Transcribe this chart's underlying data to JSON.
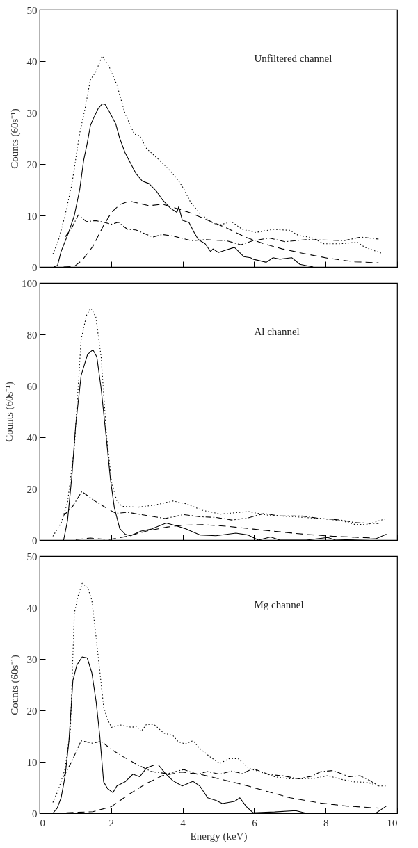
{
  "chart_data": [
    {
      "type": "line",
      "ylabel": "Counts (60s⁻¹)",
      "annotations": [
        "Unfiltered channel"
      ],
      "xlim": [
        0,
        10
      ],
      "xticks": [
        0,
        2,
        4,
        6,
        8,
        10
      ],
      "ylim": [
        0,
        50
      ],
      "yticks": [
        0,
        10,
        20,
        30,
        40,
        50
      ],
      "tick_labels": "y",
      "series": [
        {
          "color": "#000000",
          "line_style": "solid",
          "x": [
            0.4,
            0.5,
            0.6,
            0.8,
            0.97,
            1.12,
            1.23,
            1.33,
            1.42,
            1.5,
            1.64,
            1.75,
            1.83,
            1.94,
            2.13,
            2.24,
            2.39,
            2.54,
            2.69,
            2.87,
            3.06,
            3.28,
            3.43,
            3.66,
            3.84,
            3.89,
            3.99,
            4.18,
            4.33,
            4.44,
            4.63,
            4.78,
            4.85,
            5.0,
            5.22,
            5.45,
            5.71,
            5.9,
            5.97,
            6.34,
            6.53,
            6.72,
            7.05,
            7.28,
            7.65
          ],
          "values": [
            0,
            0.3,
            3,
            6.5,
            10,
            15,
            20.7,
            24,
            27.5,
            28.8,
            30.8,
            31.7,
            31.6,
            30.3,
            27.8,
            25,
            22.2,
            20.2,
            18.2,
            16.7,
            16.2,
            14.6,
            13.1,
            11.4,
            10.6,
            11.7,
            9.1,
            8.6,
            6.6,
            5.3,
            4.5,
            3,
            3.5,
            2.8,
            3.3,
            3.8,
            2,
            1.8,
            1.5,
            0.9,
            1.8,
            1.5,
            1.8,
            0.5,
            0
          ]
        },
        {
          "color": "#000000",
          "line_style": "dotted",
          "x": [
            0.37,
            0.52,
            0.71,
            0.9,
            1.12,
            1.27,
            1.42,
            1.57,
            1.75,
            1.94,
            2.16,
            2.39,
            2.65,
            2.8,
            2.99,
            3.28,
            3.58,
            3.84,
            4.03,
            4.22,
            4.48,
            4.78,
            5.0,
            5.37,
            5.67,
            6.04,
            6.53,
            7.01,
            7.24,
            7.61,
            7.95,
            8.43,
            8.88,
            9.1,
            9.59
          ],
          "values": [
            2.5,
            5,
            10,
            16,
            26,
            30.8,
            36.4,
            37.9,
            41,
            39,
            35.4,
            29.8,
            25.8,
            25.5,
            23,
            21.2,
            19.2,
            17.2,
            15.2,
            12.6,
            10.4,
            8.8,
            8.1,
            8.8,
            7.3,
            6.7,
            7.3,
            7.1,
            6.1,
            5.7,
            4.5,
            4.5,
            4.8,
            3.8,
            2.6
          ]
        },
        {
          "color": "#000000",
          "line_style": "dashed",
          "x": [
            0.67,
            0.97,
            1.19,
            1.49,
            1.79,
            2.01,
            2.24,
            2.5,
            2.76,
            3.06,
            3.43,
            3.73,
            4.18,
            4.7,
            5.22,
            5.75,
            6.27,
            6.79,
            7.46,
            8.06,
            8.81,
            9.48
          ],
          "values": [
            0,
            0.1,
            1.3,
            4,
            8.1,
            10.6,
            12.1,
            12.8,
            12.4,
            11.9,
            12.2,
            11.6,
            10.6,
            9.1,
            7.6,
            5.8,
            4.5,
            3.5,
            2.5,
            1.7,
            1,
            0.8
          ]
        },
        {
          "color": "#000000",
          "line_style": "dashdot",
          "x": [
            0.71,
            0.9,
            1.08,
            1.31,
            1.57,
            1.79,
            2.01,
            2.2,
            2.46,
            2.69,
            3.17,
            3.43,
            3.73,
            4.25,
            4.63,
            5.22,
            5.63,
            5.97,
            6.42,
            6.87,
            7.46,
            8.13,
            8.51,
            8.99,
            9.48
          ],
          "values": [
            5.8,
            7.6,
            10.1,
            8.8,
            9,
            8.7,
            8.3,
            8.7,
            7.3,
            7.2,
            5.8,
            6.3,
            6,
            5.1,
            5.3,
            5.1,
            4.3,
            5.1,
            5.6,
            4.9,
            5.3,
            5.2,
            5.1,
            5.8,
            5.4
          ]
        }
      ]
    },
    {
      "type": "line",
      "ylabel": "Counts (60s⁻¹)",
      "annotations": [
        "Al channel"
      ],
      "xlim": [
        0,
        10
      ],
      "xticks": [
        0,
        2,
        4,
        6,
        8,
        10
      ],
      "ylim": [
        0,
        100
      ],
      "yticks": [
        0,
        20,
        40,
        60,
        80,
        100
      ],
      "tick_labels": "y",
      "series": [
        {
          "color": "#000000",
          "line_style": "solid",
          "x": [
            0.67,
            0.78,
            0.9,
            1.01,
            1.16,
            1.34,
            1.49,
            1.6,
            1.72,
            1.87,
            1.98,
            2.09,
            2.24,
            2.39,
            2.54,
            2.84,
            3.13,
            3.54,
            3.81,
            4.1,
            4.48,
            4.93,
            5.49,
            5.82,
            6.12,
            6.46,
            6.72,
            7.46,
            8.06,
            8.28,
            9.4,
            9.7
          ],
          "values": [
            0,
            7.6,
            24.7,
            45,
            64,
            72.2,
            74,
            71.2,
            59,
            38.9,
            23.7,
            12.6,
            4.5,
            2.3,
            1.7,
            3.5,
            4.3,
            6.6,
            5.6,
            4.3,
            2,
            1.7,
            2.7,
            2,
            0,
            1.2,
            0,
            0,
            1,
            0,
            0.5,
            2.3
          ]
        },
        {
          "color": "#000000",
          "line_style": "dotted",
          "x": [
            0.37,
            0.6,
            0.78,
            0.97,
            1.16,
            1.31,
            1.43,
            1.57,
            1.72,
            1.87,
            2.01,
            2.16,
            2.31,
            2.76,
            3.21,
            3.73,
            4.1,
            4.55,
            5.07,
            5.82,
            6.42,
            7.09,
            7.84,
            8.43,
            8.81,
            9.18,
            9.7
          ],
          "values": [
            1.5,
            6.6,
            14.6,
            35.9,
            78,
            87.4,
            90.2,
            86.9,
            71.2,
            40.9,
            22.7,
            15.2,
            13.1,
            12.8,
            13.6,
            15.2,
            14.1,
            11.6,
            10.1,
            11.1,
            9.6,
            9.1,
            8.4,
            7.6,
            6.1,
            6.1,
            8.4
          ]
        },
        {
          "color": "#000000",
          "line_style": "dashed",
          "x": [
            1.01,
            1.42,
            1.94,
            2.46,
            2.99,
            3.58,
            4.03,
            4.55,
            5.22,
            5.97,
            6.72,
            7.46,
            8.21,
            9.33
          ],
          "values": [
            0.2,
            0.8,
            0.2,
            1.5,
            3.5,
            5.1,
            5.8,
            6,
            5.4,
            4.3,
            3.2,
            2.2,
            1.5,
            0.8
          ]
        },
        {
          "color": "#000000",
          "line_style": "dashdot",
          "x": [
            0.67,
            0.9,
            1.18,
            1.49,
            1.79,
            2.13,
            2.46,
            2.84,
            3.51,
            4.03,
            4.48,
            4.93,
            5.37,
            5.82,
            6.27,
            6.72,
            7.31,
            7.84,
            8.43,
            8.81,
            9.48
          ],
          "values": [
            9.6,
            12.6,
            18.9,
            15.7,
            13.1,
            10.4,
            10.8,
            9.9,
            8.4,
            9.9,
            9.1,
            8.8,
            7.8,
            8.6,
            10.3,
            9.4,
            9.4,
            8.4,
            7.8,
            6.8,
            6.4
          ]
        }
      ]
    },
    {
      "type": "line",
      "xlabel": "Energy (keV)",
      "ylabel": "Counts (60s⁻¹)",
      "annotations": [
        "Mg channel"
      ],
      "xlim": [
        0,
        10
      ],
      "xticks": [
        0,
        2,
        4,
        6,
        8,
        10
      ],
      "ylim": [
        0,
        50
      ],
      "yticks": [
        0,
        10,
        20,
        30,
        40,
        50
      ],
      "series": [
        {
          "color": "#000000",
          "line_style": "solid",
          "x": [
            0.37,
            0.49,
            0.6,
            0.71,
            0.82,
            0.93,
            1.04,
            1.19,
            1.33,
            1.46,
            1.58,
            1.68,
            1.79,
            1.9,
            2.05,
            2.16,
            2.39,
            2.61,
            2.8,
            2.99,
            3.21,
            3.32,
            3.51,
            3.73,
            3.99,
            4.29,
            4.48,
            4.7,
            4.93,
            5.11,
            5.45,
            5.6,
            5.78,
            5.97,
            6.57,
            7.16,
            7.46,
            9.4,
            9.7
          ],
          "values": [
            0,
            1,
            3,
            7.1,
            14.1,
            25.8,
            28.8,
            30.4,
            30.2,
            27.3,
            21.7,
            15.2,
            6.1,
            4.8,
            4,
            5.3,
            6.1,
            7.6,
            7.1,
            8.8,
            9.4,
            9.4,
            7.8,
            6.3,
            5.3,
            6.2,
            5.3,
            3,
            2.5,
            1.9,
            2.3,
            3,
            1.3,
            0.1,
            0.25,
            0.5,
            0,
            0,
            1.4
          ]
        },
        {
          "color": "#000000",
          "line_style": "dotted",
          "x": [
            0.37,
            0.52,
            0.71,
            0.86,
            0.97,
            1.08,
            1.19,
            1.34,
            1.46,
            1.57,
            1.68,
            1.79,
            1.9,
            2.01,
            2.24,
            2.57,
            2.72,
            2.84,
            2.99,
            3.21,
            3.47,
            3.73,
            3.88,
            4.07,
            4.29,
            4.48,
            4.78,
            5.04,
            5.3,
            5.56,
            5.86,
            6.19,
            6.57,
            6.94,
            7.31,
            7.69,
            8.06,
            8.43,
            8.81,
            9.18,
            9.48,
            9.7
          ],
          "values": [
            2.1,
            4.5,
            8.6,
            16.2,
            38.9,
            42.4,
            44.7,
            43.9,
            41.4,
            34.8,
            27.8,
            20.7,
            18.2,
            16.7,
            17.2,
            16.7,
            16.9,
            15.9,
            17.3,
            17.2,
            15.6,
            15.1,
            13.9,
            13.5,
            14.1,
            12.6,
            10.9,
            9.7,
            10.6,
            10.6,
            8.7,
            8,
            7.1,
            6.7,
            6.7,
            6.8,
            7.3,
            6.6,
            6.1,
            6,
            5.3,
            5.3
          ]
        },
        {
          "color": "#000000",
          "line_style": "dashed",
          "x": [
            0.75,
            1.49,
            2.01,
            2.46,
            2.99,
            3.43,
            3.96,
            4.48,
            5.07,
            5.67,
            6.34,
            7.01,
            7.84,
            8.58,
            9.48
          ],
          "values": [
            0.1,
            0.3,
            1.3,
            3.5,
            5.8,
            7.3,
            8,
            7.6,
            6.6,
            5.6,
            4.3,
            3,
            2,
            1.4,
            1
          ]
        },
        {
          "color": "#000000",
          "line_style": "dashdot",
          "x": [
            0.67,
            0.9,
            1.16,
            1.49,
            1.72,
            2.01,
            2.31,
            2.69,
            3.13,
            3.58,
            4.03,
            4.4,
            4.7,
            5.04,
            5.37,
            5.67,
            5.97,
            6.42,
            6.79,
            7.24,
            7.61,
            7.87,
            8.21,
            8.66,
            8.96,
            9.25,
            9.48
          ],
          "values": [
            7.1,
            10.1,
            14.1,
            13.6,
            14,
            12.4,
            11.1,
            9.6,
            8.1,
            7.7,
            8.5,
            7.6,
            8.1,
            7.6,
            8.2,
            7.7,
            8.7,
            7.5,
            7.3,
            6.7,
            7.2,
            8.1,
            8.3,
            7.1,
            7.3,
            6.3,
            5.3
          ]
        }
      ]
    }
  ]
}
